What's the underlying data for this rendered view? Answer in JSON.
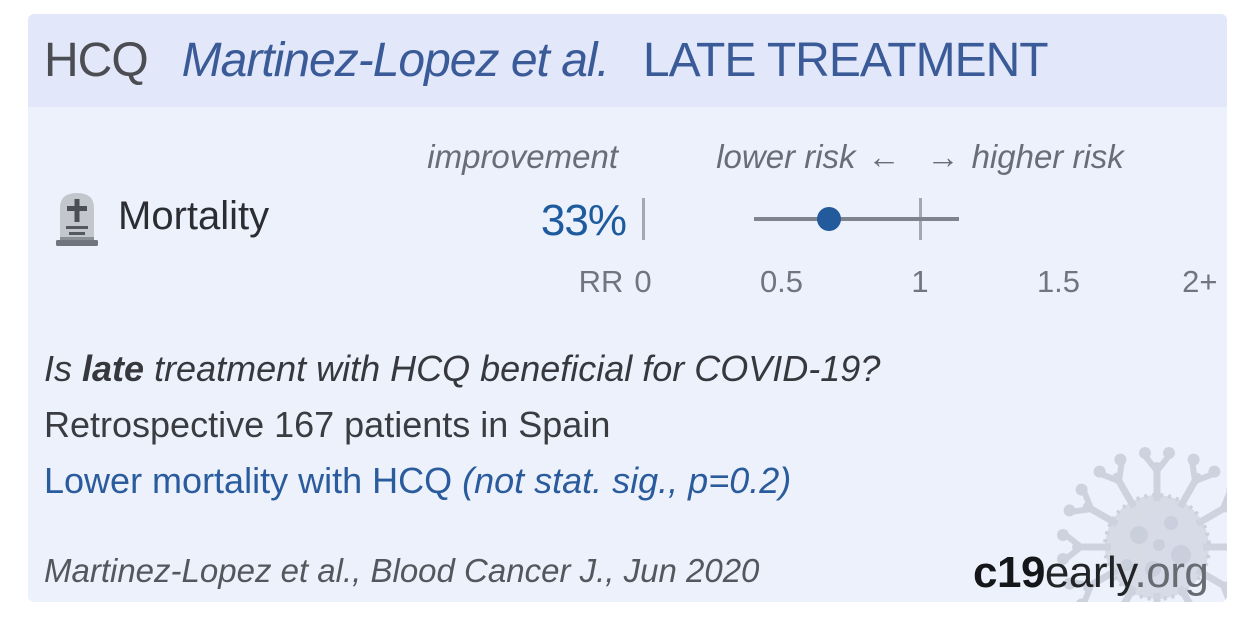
{
  "header": {
    "drug": "HCQ",
    "study": "Martinez-Lopez et al.",
    "treatment_stage": "LATE TREATMENT"
  },
  "forest_plot": {
    "column_label": "improvement",
    "direction_left": "lower risk",
    "arrow_left": "←",
    "arrow_right": "→",
    "direction_right": "higher risk",
    "outcome_label": "Mortality",
    "improvement_value": "33%",
    "axis_label": "RR",
    "tick_labels": [
      "0",
      "0.5",
      "1",
      "1.5",
      "2+"
    ]
  },
  "chart_data": {
    "type": "scatter",
    "title": "Mortality relative risk (forest plot, single study)",
    "xlabel": "RR",
    "xlim": [
      0,
      2
    ],
    "x_ticks": [
      0,
      0.5,
      1,
      1.5,
      2
    ],
    "x_tick_labels": [
      "0",
      "0.5",
      "1",
      "1.5",
      "2+"
    ],
    "reference_line_x": 1,
    "grid": false,
    "legend_position": "none",
    "series": [
      {
        "name": "Mortality",
        "rr_point": 0.67,
        "ci_lower": 0.4,
        "ci_upper": 1.14,
        "improvement_pct": 33
      }
    ]
  },
  "summary": {
    "question_prefix": "Is",
    "question_bold": "late",
    "question_suffix": "treatment with HCQ beneficial for COVID-19?",
    "study_design": "Retrospective 167 patients in Spain",
    "finding": "Lower mortality with HCQ",
    "finding_detail": "(not stat. sig., p=0.2)"
  },
  "footer": {
    "citation": "Martinez-Lopez et al., Blood Cancer J., Jun 2020"
  },
  "logo": {
    "bold": "c19",
    "name": "early",
    "tld": ".org"
  },
  "colors": {
    "card_bg": "#edf1fb",
    "header_bg": "#e2e8fa",
    "accent_blue": "#2a5c9d",
    "dot_blue": "#235a9c",
    "ci_gray": "#7d8490",
    "label_gray": "#686d78"
  }
}
